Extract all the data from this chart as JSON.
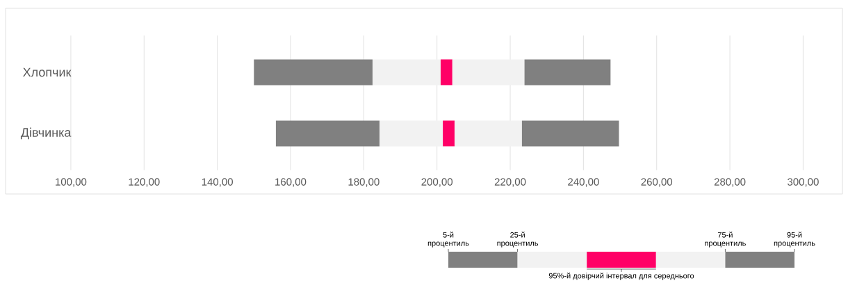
{
  "chart_data": {
    "type": "bar",
    "orientation": "horizontal",
    "categories": [
      "Хлопчик",
      "Дівчинка"
    ],
    "series": [
      {
        "color": "#808080",
        "base": [
          150,
          156
        ],
        "values": [
          32.4,
          28.3
        ]
      },
      {
        "color": "#f2f2f2",
        "base": [
          182.4,
          184.3
        ],
        "values": [
          18.6,
          17.3
        ]
      },
      {
        "color": "#ff0066",
        "base": [
          201,
          201.6
        ],
        "values": [
          3.2,
          3.2
        ]
      },
      {
        "color": "#f2f2f2",
        "base": [
          204.2,
          204.8
        ],
        "values": [
          19.7,
          18.4
        ]
      },
      {
        "color": "#808080",
        "base": [
          223.9,
          223.2
        ],
        "values": [
          23.5,
          26.5
        ]
      }
    ],
    "xlim": [
      100,
      300
    ],
    "xticks": [
      {
        "value": 100,
        "label": "100,00"
      },
      {
        "value": 120,
        "label": "120,00"
      },
      {
        "value": 140,
        "label": "140,00"
      },
      {
        "value": 160,
        "label": "160,00"
      },
      {
        "value": 180,
        "label": "180,00"
      },
      {
        "value": 200,
        "label": "200,00"
      },
      {
        "value": 220,
        "label": "220,00"
      },
      {
        "value": 240,
        "label": "240,00"
      },
      {
        "value": 260,
        "label": "260,00"
      },
      {
        "value": 280,
        "label": "280,00"
      },
      {
        "value": 300,
        "label": "300,00"
      }
    ],
    "grid": "x",
    "annotations": [
      "5-й процентиль",
      "25-й процентиль",
      "75-й процентиль",
      "95-й процентиль",
      "95%-й довірчий інтервал для середнього"
    ]
  }
}
